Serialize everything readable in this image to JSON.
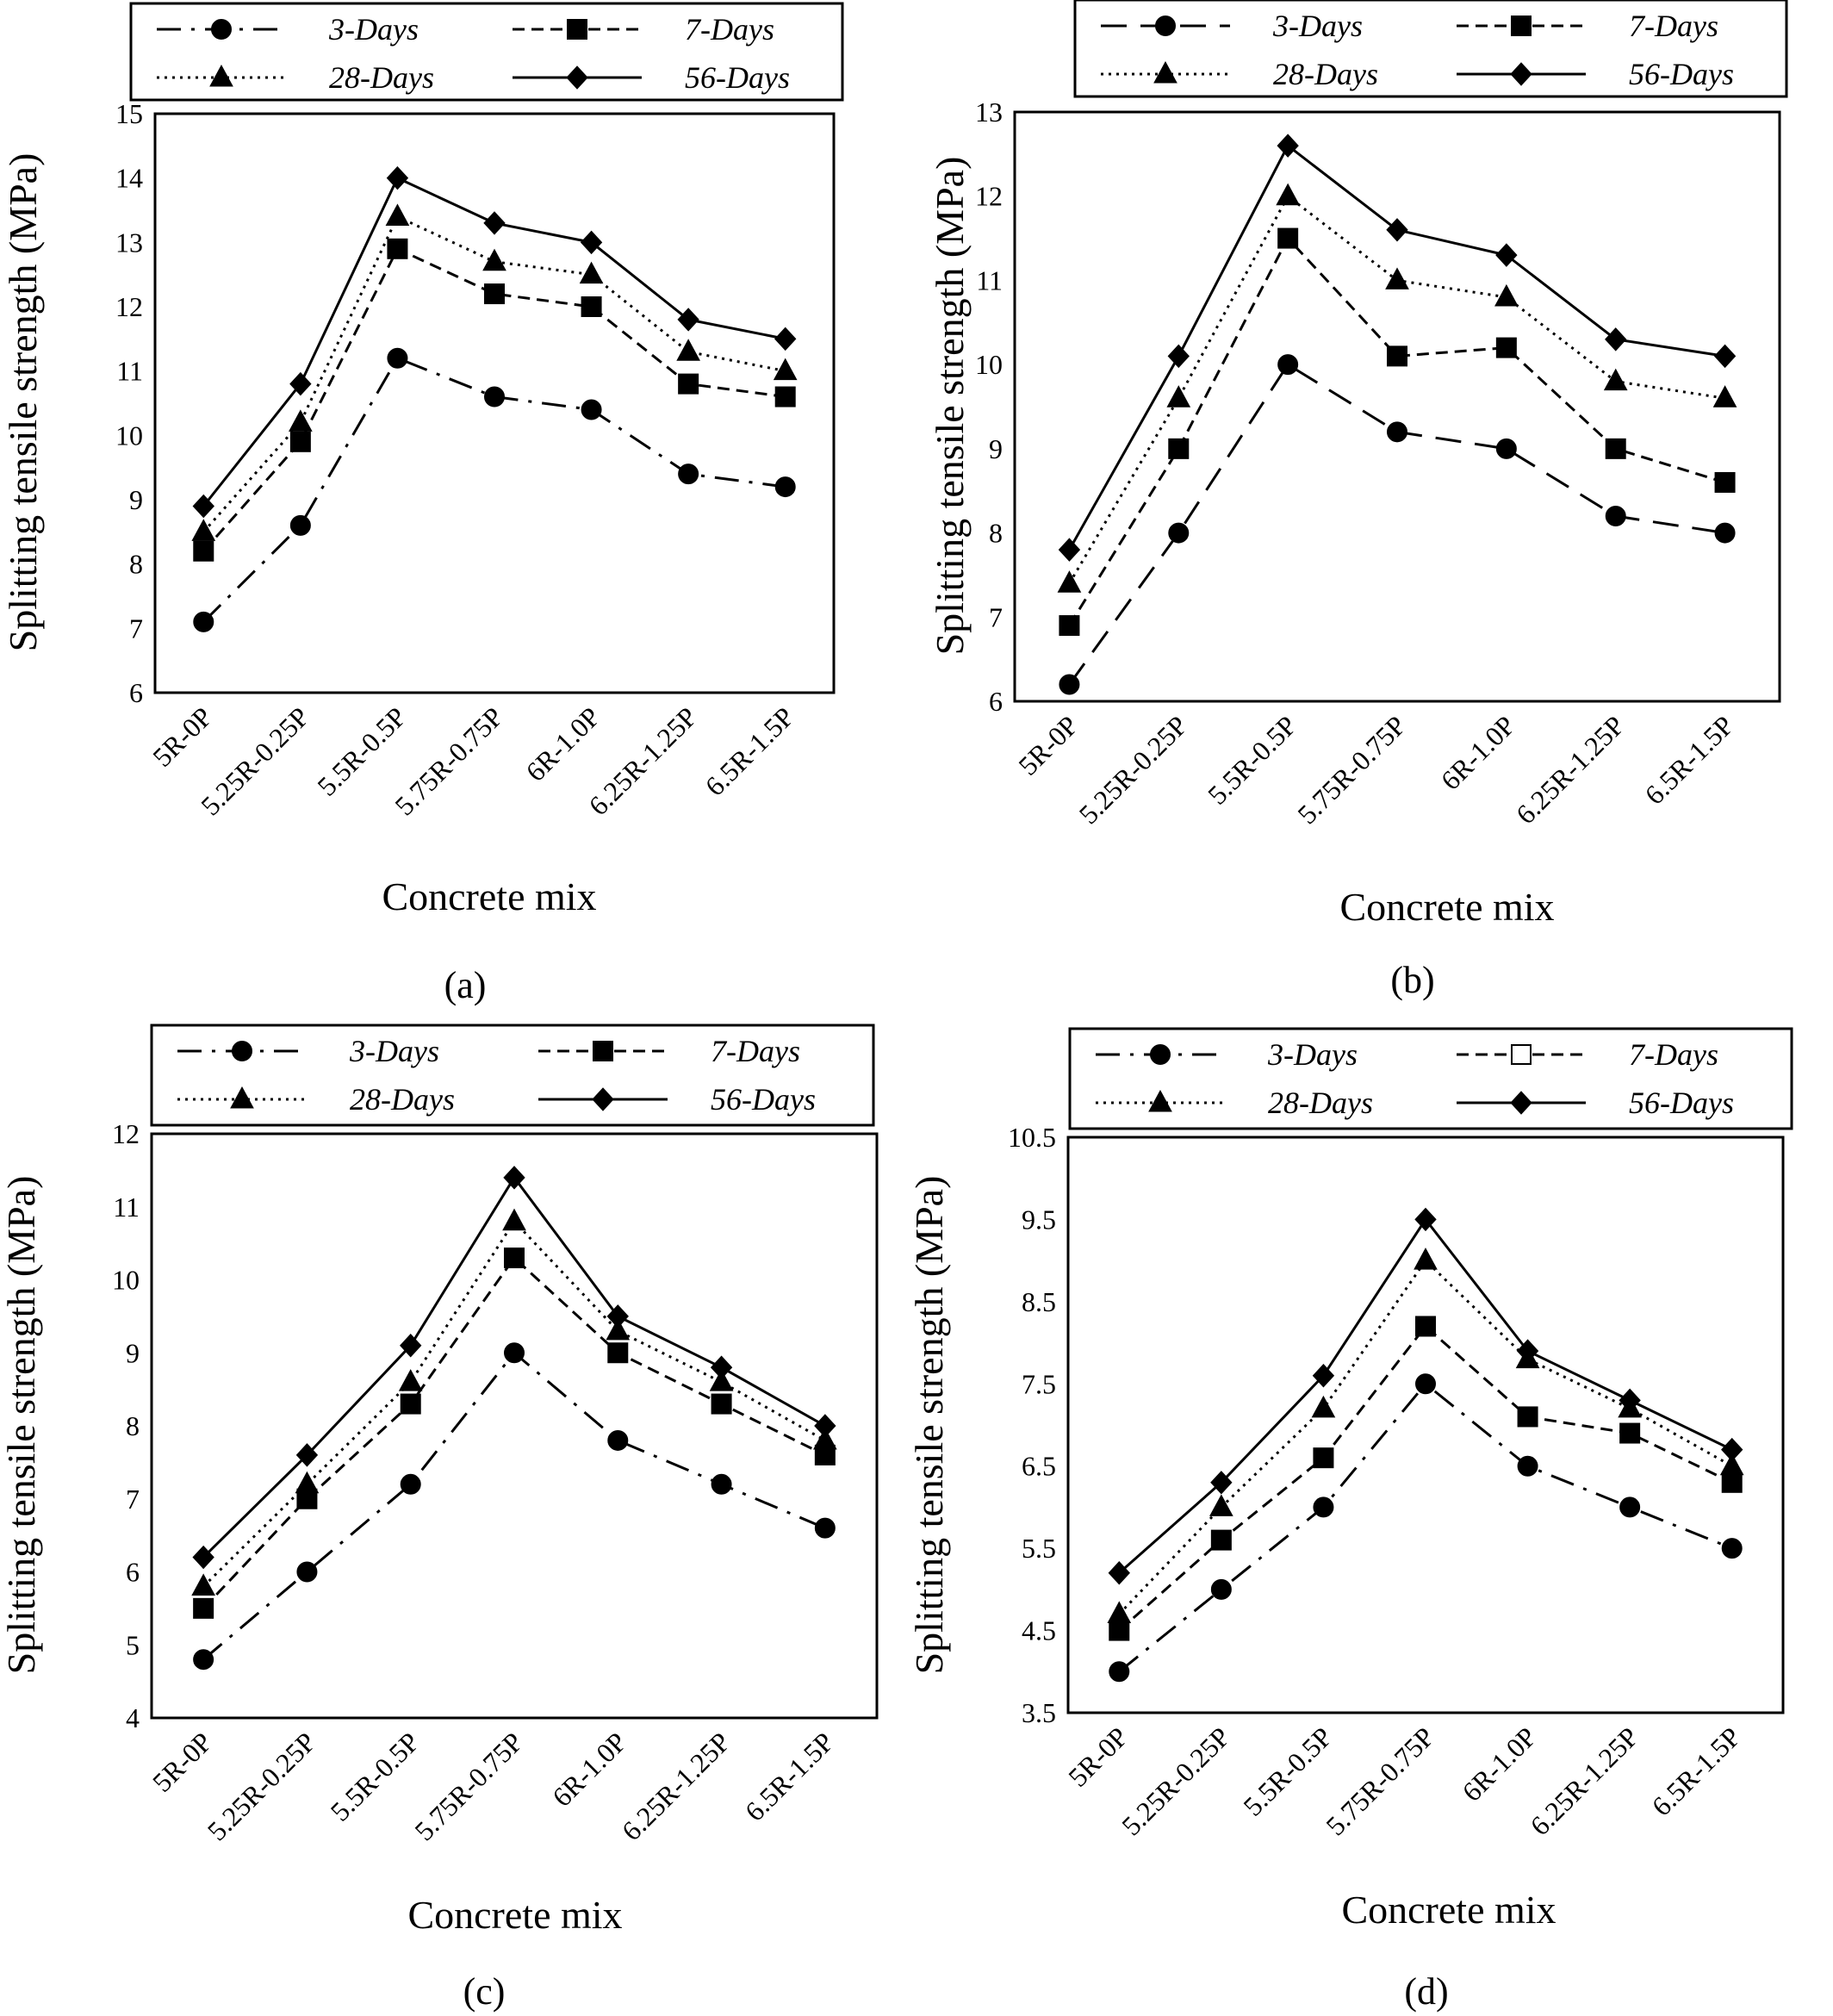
{
  "figure": {
    "series_styles": {
      "3-Days": {
        "marker": "circle",
        "dash": "long-dash"
      },
      "7-Days": {
        "marker": "square",
        "dash": "short-dash"
      },
      "28-Days": {
        "marker": "triangle",
        "dash": "dotted"
      },
      "56-Days": {
        "marker": "diamond",
        "dash": "solid"
      }
    },
    "line_color": "#000000"
  },
  "chart_data": [
    {
      "type": "line",
      "panel_label": "(a)",
      "xlabel": "Concrete mix",
      "ylabel": "Splitting tensile strength (MPa)",
      "categories": [
        "5R-0P",
        "5.25R-0.25P",
        "5.5R-0.5P",
        "5.75R-0.75P",
        "6R-1.0P",
        "6.25R-1.25P",
        "6.5R-1.5P"
      ],
      "ylim": [
        6,
        15
      ],
      "yticks": [
        "6",
        "7",
        "8",
        "9",
        "10",
        "11",
        "12",
        "13",
        "14",
        "15"
      ],
      "legend_position": "top",
      "grid": false,
      "series": [
        {
          "name": "3-Days",
          "values": [
            7.1,
            8.6,
            11.2,
            10.6,
            10.4,
            9.4,
            9.2
          ],
          "marker": "circle",
          "dash": "dash-dot"
        },
        {
          "name": "7-Days",
          "values": [
            8.2,
            9.9,
            12.9,
            12.2,
            12.0,
            10.8,
            10.6
          ],
          "marker": "square",
          "dash": "short-dash"
        },
        {
          "name": "28-Days",
          "values": [
            8.5,
            10.2,
            13.4,
            12.7,
            12.5,
            11.3,
            11.0
          ],
          "marker": "triangle",
          "dash": "dotted"
        },
        {
          "name": "56-Days",
          "values": [
            8.9,
            10.8,
            14.0,
            13.3,
            13.0,
            11.8,
            11.5
          ],
          "marker": "diamond",
          "dash": "solid"
        }
      ]
    },
    {
      "type": "line",
      "panel_label": "(b)",
      "xlabel": "Concrete mix",
      "ylabel": "Splitting tensile strength (MPa)",
      "categories": [
        "5R-0P",
        "5.25R-0.25P",
        "5.5R-0.5P",
        "5.75R-0.75P",
        "6R-1.0P",
        "6.25R-1.25P",
        "6.5R-1.5P"
      ],
      "ylim": [
        6,
        13
      ],
      "yticks": [
        "6",
        "7",
        "8",
        "9",
        "10",
        "11",
        "12",
        "13"
      ],
      "legend_position": "top",
      "grid": false,
      "series": [
        {
          "name": "3-Days",
          "values": [
            6.2,
            8.0,
            10.0,
            9.2,
            9.0,
            8.2,
            8.0
          ],
          "marker": "circle",
          "dash": "long-dash"
        },
        {
          "name": "7-Days",
          "values": [
            6.9,
            9.0,
            11.5,
            10.1,
            10.2,
            9.0,
            8.6
          ],
          "marker": "square",
          "dash": "short-dash"
        },
        {
          "name": "28-Days",
          "values": [
            7.4,
            9.6,
            12.0,
            11.0,
            10.8,
            9.8,
            9.6
          ],
          "marker": "triangle",
          "dash": "dotted"
        },
        {
          "name": "56-Days",
          "values": [
            7.8,
            10.1,
            12.6,
            11.6,
            11.3,
            10.3,
            10.1
          ],
          "marker": "diamond",
          "dash": "solid"
        }
      ]
    },
    {
      "type": "line",
      "panel_label": "(c)",
      "xlabel": "Concrete mix",
      "ylabel": "Splitting tensile strength (MPa)",
      "categories": [
        "5R-0P",
        "5.25R-0.25P",
        "5.5R-0.5P",
        "5.75R-0.75P",
        "6R-1.0P",
        "6.25R-1.25P",
        "6.5R-1.5P"
      ],
      "ylim": [
        4,
        12
      ],
      "yticks": [
        "4",
        "5",
        "6",
        "7",
        "8",
        "9",
        "10",
        "11",
        "12"
      ],
      "legend_position": "top",
      "grid": false,
      "series": [
        {
          "name": "3-Days",
          "values": [
            4.8,
            6.0,
            7.2,
            9.0,
            7.8,
            7.2,
            6.6
          ],
          "marker": "circle",
          "dash": "dash-dot"
        },
        {
          "name": "7-Days",
          "values": [
            5.5,
            7.0,
            8.3,
            10.3,
            9.0,
            8.3,
            7.6
          ],
          "marker": "square",
          "dash": "short-dash"
        },
        {
          "name": "28-Days",
          "values": [
            5.8,
            7.2,
            8.6,
            10.8,
            9.3,
            8.6,
            7.8
          ],
          "marker": "triangle",
          "dash": "dotted"
        },
        {
          "name": "56-Days",
          "values": [
            6.2,
            7.6,
            9.1,
            11.4,
            9.5,
            8.8,
            8.0
          ],
          "marker": "diamond",
          "dash": "solid"
        }
      ]
    },
    {
      "type": "line",
      "panel_label": "(d)",
      "xlabel": "Concrete mix",
      "ylabel": "Splitting tensile strength (MPa)",
      "categories": [
        "5R-0P",
        "5.25R-0.25P",
        "5.5R-0.5P",
        "5.75R-0.75P",
        "6R-1.0P",
        "6.25R-1.25P",
        "6.5R-1.5P"
      ],
      "ylim": [
        3.5,
        10.5
      ],
      "yticks": [
        "3.5",
        "4.5",
        "5.5",
        "6.5",
        "7.5",
        "8.5",
        "9.5",
        "10.5"
      ],
      "legend_position": "top",
      "grid": false,
      "series": [
        {
          "name": "3-Days",
          "values": [
            4.0,
            5.0,
            6.0,
            7.5,
            6.5,
            6.0,
            5.5
          ],
          "marker": "circle",
          "dash": "dash-dot"
        },
        {
          "name": "7-Days",
          "values": [
            4.5,
            5.6,
            6.6,
            8.2,
            7.1,
            6.9,
            6.3
          ],
          "marker": "square",
          "dash": "short-dash",
          "legend_marker": "open-square"
        },
        {
          "name": "28-Days",
          "values": [
            4.7,
            6.0,
            7.2,
            9.0,
            7.8,
            7.2,
            6.5
          ],
          "marker": "triangle",
          "dash": "dotted"
        },
        {
          "name": "56-Days",
          "values": [
            5.2,
            6.3,
            7.6,
            9.5,
            7.9,
            7.3,
            6.7
          ],
          "marker": "diamond",
          "dash": "solid"
        }
      ]
    }
  ]
}
